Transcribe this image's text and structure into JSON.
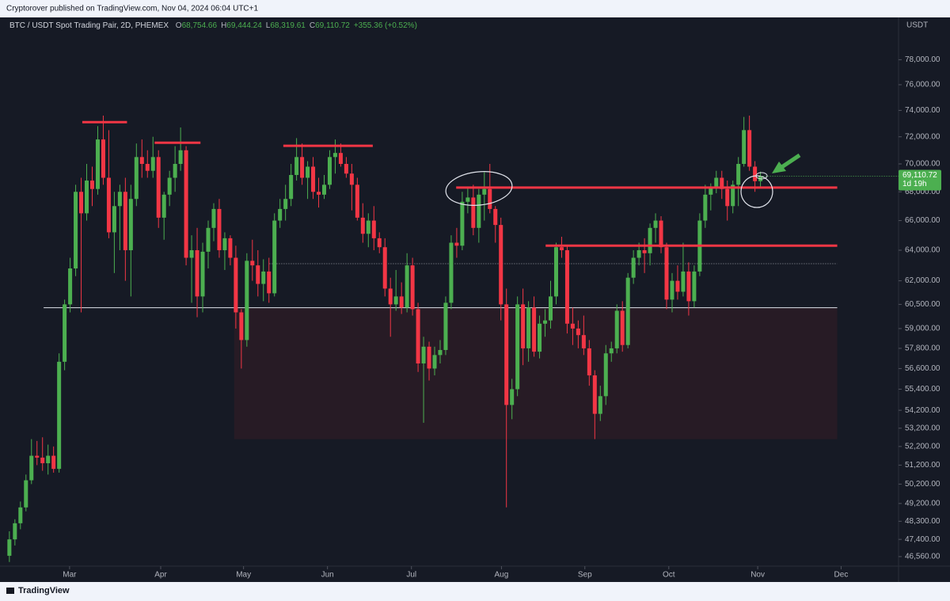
{
  "chart_data": {
    "type": "candlestick",
    "published": "Cryptorover published on TradingView.com, Nov 04, 2024 06:04 UTC+1",
    "title": "BTC / USDT Spot Trading Pair, 2D, PHEMEX",
    "header": [
      {
        "key": "O",
        "value": "68,754.66"
      },
      {
        "key": "H",
        "value": "69,444.24"
      },
      {
        "key": "L",
        "value": "68,319.61"
      },
      {
        "key": "C",
        "value": "69,110.72"
      }
    ],
    "change": "+355.36 (+0.52%)",
    "currency": "USDT",
    "brand": "TradingView",
    "up_color": "#4caf50",
    "down_color": "#f23645",
    "log_scale": true,
    "open": [
      46600,
      47400,
      48200,
      49000,
      50400,
      51700,
      51600,
      51300,
      51700,
      51000,
      57000,
      60500,
      62800,
      68000,
      66500,
      68800,
      68200,
      71800,
      69000,
      65200,
      67000,
      68000,
      64000,
      67500,
      70500,
      70000,
      69500,
      70500,
      66200,
      67800,
      69000,
      70000,
      71000,
      63500,
      64000,
      61000,
      63900,
      65500,
      66800,
      64000,
      64800,
      63500,
      60000,
      58300,
      63300,
      63000,
      61800,
      62600,
      61200,
      66000,
      66800,
      67500,
      69200,
      70500,
      69000,
      69800,
      68000,
      67800,
      68500,
      70500,
      70800,
      70000,
      69300,
      68500,
      66200,
      65100,
      66000,
      64800,
      64200,
      61500,
      60500,
      61000,
      60300,
      63000,
      60200,
      56900,
      57900,
      56600,
      57400,
      57700,
      60600,
      64500,
      64300,
      67300,
      67600,
      65500,
      67800,
      68200,
      66800,
      65700,
      60500,
      54500,
      55400,
      60500,
      57800,
      60300,
      57600,
      59300,
      59500,
      61000,
      64200,
      64000,
      59300,
      59000,
      58600,
      57800,
      56200,
      54000,
      55000,
      57500,
      57800,
      60100,
      58000,
      62200,
      63500,
      64000,
      63800,
      65500,
      66000,
      64200,
      60800,
      62000,
      61300,
      62600,
      60700,
      62600,
      66000,
      67800,
      68300,
      69000,
      68200,
      67000,
      68500,
      70000,
      72500,
      69800,
      68754.66
    ],
    "high": [
      47800,
      48400,
      49300,
      50700,
      52600,
      52500,
      52700,
      52300,
      52200,
      57500,
      60800,
      63500,
      68500,
      69000,
      70000,
      69800,
      72800,
      73600,
      72500,
      68000,
      68500,
      69000,
      68500,
      71500,
      71800,
      71000,
      72000,
      71000,
      68000,
      69500,
      71300,
      72700,
      71300,
      65000,
      65500,
      64500,
      66000,
      67200,
      67500,
      65200,
      65000,
      64300,
      60200,
      63800,
      64700,
      64000,
      63400,
      63500,
      66500,
      67500,
      68500,
      70000,
      71900,
      71500,
      70200,
      70500,
      69000,
      69200,
      71000,
      71800,
      71500,
      70500,
      70000,
      69000,
      67200,
      66500,
      67000,
      65200,
      64800,
      62200,
      62700,
      61900,
      63800,
      63500,
      60600,
      58500,
      58200,
      57900,
      58300,
      61000,
      65000,
      65500,
      68000,
      68300,
      68500,
      68200,
      69400,
      70000,
      67000,
      66200,
      61500,
      56000,
      61000,
      61500,
      60700,
      61000,
      59800,
      60200,
      62000,
      64500,
      64900,
      64300,
      60300,
      59500,
      59800,
      58300,
      56500,
      55600,
      58000,
      58200,
      60500,
      60700,
      62500,
      64000,
      64500,
      64800,
      65800,
      66500,
      66300,
      64500,
      62500,
      63000,
      64500,
      63200,
      63000,
      66500,
      68500,
      68600,
      69500,
      69500,
      68800,
      68800,
      70500,
      73500,
      73600,
      70200,
      69444.24
    ],
    "low": [
      46300,
      47100,
      47900,
      48800,
      50200,
      51200,
      50900,
      50700,
      50800,
      50800,
      56500,
      60000,
      62300,
      60000,
      66000,
      67000,
      67800,
      68500,
      64800,
      62500,
      64000,
      62000,
      61000,
      67000,
      69000,
      69000,
      69000,
      65500,
      64700,
      67000,
      68000,
      69500,
      63000,
      60600,
      59700,
      60000,
      62800,
      64600,
      63500,
      62700,
      63000,
      59000,
      56600,
      57900,
      62000,
      61000,
      60700,
      60600,
      61000,
      65500,
      66000,
      67000,
      68800,
      68500,
      67500,
      67500,
      66900,
      67500,
      68200,
      69300,
      69800,
      69000,
      66700,
      66000,
      64500,
      64200,
      64000,
      63800,
      61000,
      58500,
      60100,
      59900,
      60000,
      59800,
      56400,
      53500,
      55900,
      56200,
      56900,
      57400,
      60200,
      63500,
      64000,
      66500,
      65000,
      64500,
      66000,
      66500,
      64500,
      59500,
      49000,
      53700,
      55000,
      56800,
      57000,
      57300,
      57200,
      58500,
      59000,
      60500,
      63500,
      58700,
      58000,
      57800,
      57400,
      55600,
      52600,
      53600,
      54500,
      57000,
      57500,
      57600,
      57800,
      61800,
      63000,
      62500,
      63000,
      64500,
      63800,
      60200,
      60000,
      60800,
      61000,
      59800,
      60300,
      62300,
      65500,
      66700,
      67900,
      67500,
      66000,
      66500,
      67000,
      69800,
      69500,
      68000,
      68319.61
    ],
    "close": [
      47400,
      48200,
      49000,
      50400,
      51700,
      51600,
      51300,
      51700,
      51000,
      57000,
      60500,
      62800,
      68000,
      66500,
      68800,
      68200,
      71800,
      69000,
      65200,
      67000,
      68000,
      64000,
      67500,
      70500,
      70000,
      69500,
      70500,
      66200,
      67800,
      69000,
      70000,
      71000,
      63500,
      64000,
      61000,
      63900,
      65500,
      66800,
      64000,
      64800,
      63500,
      60000,
      58300,
      63300,
      63000,
      61800,
      62600,
      61200,
      66000,
      66800,
      67500,
      69200,
      70500,
      69000,
      69800,
      68000,
      67800,
      68500,
      70500,
      70800,
      70000,
      69300,
      68500,
      66200,
      65100,
      66000,
      64800,
      64200,
      61500,
      60500,
      61000,
      60300,
      63000,
      60200,
      56900,
      57900,
      56600,
      57400,
      57700,
      60600,
      64500,
      64300,
      67300,
      67600,
      65500,
      67800,
      68200,
      66800,
      65700,
      60500,
      54500,
      55400,
      60500,
      57800,
      60300,
      57600,
      59300,
      59500,
      61000,
      64200,
      64000,
      59300,
      59000,
      58600,
      57800,
      56200,
      54000,
      55000,
      57500,
      57800,
      60100,
      58000,
      62200,
      63500,
      64000,
      63800,
      65500,
      66000,
      64200,
      60800,
      62000,
      61300,
      62600,
      60700,
      62600,
      66000,
      67800,
      68300,
      69000,
      68200,
      67000,
      68500,
      70000,
      72500,
      69800,
      68755.36,
      69110.72
    ],
    "xlim": [
      -1.7,
      161
    ],
    "xticks": [
      {
        "value": 10.9,
        "label": "Mar"
      },
      {
        "value": 27.4,
        "label": "Apr"
      },
      {
        "value": 42.4,
        "label": "May"
      },
      {
        "value": 57.6,
        "label": "Jun"
      },
      {
        "value": 72.8,
        "label": "Jul"
      },
      {
        "value": 89.1,
        "label": "Aug"
      },
      {
        "value": 104.2,
        "label": "Sep"
      },
      {
        "value": 119.4,
        "label": "Oct"
      },
      {
        "value": 135.5,
        "label": "Nov"
      },
      {
        "value": 150.6,
        "label": "Dec"
      }
    ],
    "ylim": [
      46100,
      81500
    ],
    "yticks": [
      {
        "value": 78000,
        "label": "78,000.00"
      },
      {
        "value": 76000,
        "label": "76,000.00"
      },
      {
        "value": 74000,
        "label": "74,000.00"
      },
      {
        "value": 72000,
        "label": "72,000.00"
      },
      {
        "value": 70000,
        "label": "70,000.00"
      },
      {
        "value": 68000,
        "label": "68,000.00"
      },
      {
        "value": 66000,
        "label": "66,000.00"
      },
      {
        "value": 64000,
        "label": "64,000.00"
      },
      {
        "value": 62000,
        "label": "62,000.00"
      },
      {
        "value": 60500,
        "label": "60,500.00"
      },
      {
        "value": 59000,
        "label": "59,000.00"
      },
      {
        "value": 57800,
        "label": "57,800.00"
      },
      {
        "value": 56600,
        "label": "56,600.00"
      },
      {
        "value": 55400,
        "label": "55,400.00"
      },
      {
        "value": 54200,
        "label": "54,200.00"
      },
      {
        "value": 53200,
        "label": "53,200.00"
      },
      {
        "value": 52200,
        "label": "52,200.00"
      },
      {
        "value": 51200,
        "label": "51,200.00"
      },
      {
        "value": 50200,
        "label": "50,200.00"
      },
      {
        "value": 49200,
        "label": "49,200.00"
      },
      {
        "value": 48300,
        "label": "48,300.00"
      },
      {
        "value": 47400,
        "label": "47,400.00"
      },
      {
        "value": 46560,
        "label": "46,560.00"
      }
    ],
    "last_price": {
      "value": 69110.72,
      "label": "69,110.72",
      "countdown": "1d 19h"
    },
    "annotations": {
      "levels": [
        {
          "price": 73100,
          "from": 13.2,
          "to": 21.3
        },
        {
          "price": 71560,
          "from": 26.3,
          "to": 34.6
        },
        {
          "price": 71330,
          "from": 49.6,
          "to": 65.8
        },
        {
          "price": 68300,
          "from": 80.9,
          "to": 149.9
        },
        {
          "price": 64300,
          "from": 97.1,
          "to": 149.9
        }
      ],
      "level_color": "#f23645",
      "support": {
        "price": 60290,
        "from": 6.2,
        "to": 149.9
      },
      "dotted": {
        "price": 63110,
        "from": 47.1,
        "to": 149.9
      },
      "zone": {
        "low": 52600,
        "high": 60290,
        "from": 40.7,
        "to": 149.9
      }
    }
  }
}
